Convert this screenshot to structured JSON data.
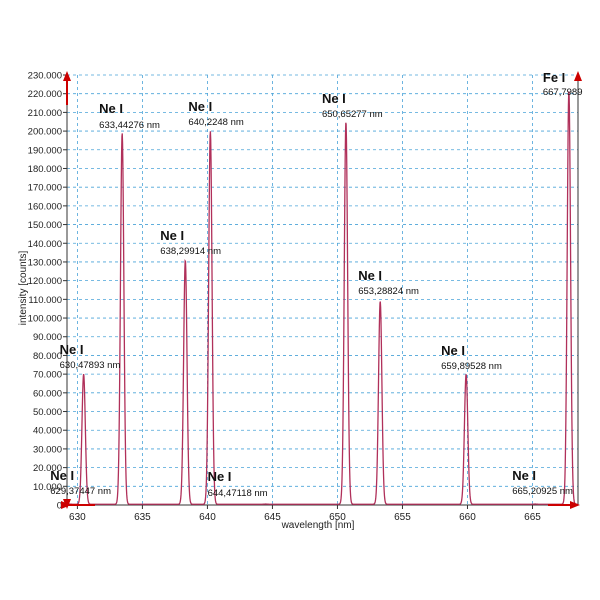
{
  "chart_data": {
    "type": "line",
    "xlabel": "wavelength [nm]",
    "ylabel": "intensity [counts]",
    "xlim": [
      629.2,
      668.5
    ],
    "ylim": [
      0,
      230000
    ],
    "grid": true,
    "x_ticks": [
      630,
      635,
      640,
      645,
      650,
      655,
      660,
      665
    ],
    "x_tick_labels": [
      "630",
      "635",
      "640",
      "645",
      "650",
      "655",
      "660",
      "665"
    ],
    "y_ticks": [
      0,
      10000,
      20000,
      30000,
      40000,
      50000,
      60000,
      70000,
      80000,
      90000,
      100000,
      110000,
      120000,
      130000,
      140000,
      150000,
      160000,
      170000,
      180000,
      190000,
      200000,
      210000,
      220000,
      230000
    ],
    "y_tick_labels": [
      "0",
      "10.000",
      "20.000",
      "30.000",
      "40.000",
      "50.000",
      "60.000",
      "70.000",
      "80.000",
      "90.000",
      "100.000",
      "110.000",
      "120.000",
      "130.000",
      "140.000",
      "150.000",
      "160.000",
      "170.000",
      "180.000",
      "190.000",
      "200.000",
      "210.000",
      "220.000",
      "230.000"
    ],
    "series_color": "#b0305a",
    "grid_color": "#4aa3d8",
    "arrow_color": "#cc0000",
    "peaks": [
      {
        "element": "Ne I",
        "wavelength": 629.37447,
        "label": "629,37447 nm",
        "intensity": 500
      },
      {
        "element": "Ne I",
        "wavelength": 630.47893,
        "label": "630,47893 nm",
        "intensity": 70000
      },
      {
        "element": "Ne I",
        "wavelength": 633.44276,
        "label": "633,44276 nm",
        "intensity": 199000
      },
      {
        "element": "Ne I",
        "wavelength": 638.29914,
        "label": "638,29914 nm",
        "intensity": 131000
      },
      {
        "element": "Ne I",
        "wavelength": 640.2248,
        "label": "640,2248 nm",
        "intensity": 200000
      },
      {
        "element": "Ne I",
        "wavelength": 644.47118,
        "label": "644,47118 nm",
        "intensity": 500
      },
      {
        "element": "Ne I",
        "wavelength": 650.65277,
        "label": "650,65277 nm",
        "intensity": 205000
      },
      {
        "element": "Ne I",
        "wavelength": 653.28824,
        "label": "653,28824 nm",
        "intensity": 109000
      },
      {
        "element": "Ne I",
        "wavelength": 659.89528,
        "label": "659,89528 nm",
        "intensity": 70000
      },
      {
        "element": "Ne I",
        "wavelength": 665.20925,
        "label": "665,20925 nm",
        "intensity": 500
      },
      {
        "element": "Fe I",
        "wavelength": 667.7989,
        "label": "667,7989",
        "intensity": 222000
      }
    ]
  }
}
